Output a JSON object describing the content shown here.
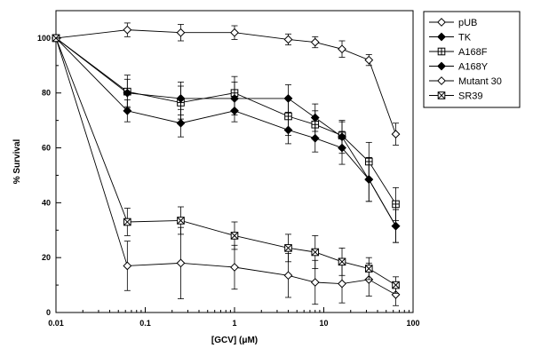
{
  "chart_data": {
    "type": "line",
    "xlabel": "[GCV]  (μM)",
    "ylabel": "% Survival",
    "x_scale": "log",
    "xlim": [
      0.01,
      100
    ],
    "ylim": [
      0,
      110
    ],
    "x_ticks": [
      0.01,
      0.1,
      1,
      10,
      100
    ],
    "x_tick_labels": [
      "0.01",
      "0.1",
      "1",
      "10",
      "100"
    ],
    "y_ticks": [
      0,
      20,
      40,
      60,
      80,
      100
    ],
    "y_tick_labels": [
      "0",
      "20",
      "40",
      "60",
      "80",
      "100"
    ],
    "grid": false,
    "legend_position": "top-right",
    "x": [
      0.01,
      0.063,
      0.25,
      1,
      4,
      8,
      16,
      32,
      64
    ],
    "series": [
      {
        "name": "pUB",
        "marker": "diamond-open",
        "values": [
          100,
          103,
          102,
          102,
          99.5,
          98.5,
          96,
          92,
          65
        ],
        "err": [
          0,
          2.5,
          3,
          2.5,
          2,
          2,
          3,
          2,
          4
        ]
      },
      {
        "name": "TK",
        "marker": "diamond-filled",
        "values": [
          100,
          73.5,
          69,
          73.5,
          66.5,
          63.5,
          60,
          48.5,
          31.5
        ],
        "err": [
          0,
          4,
          5,
          4,
          5,
          5,
          6,
          8,
          6
        ]
      },
      {
        "name": "A168F",
        "marker": "square-plus",
        "values": [
          100,
          80.5,
          76.5,
          80,
          71.5,
          68.5,
          64.5,
          55,
          39.5
        ],
        "err": [
          0,
          6,
          6,
          6,
          7,
          5,
          5,
          7,
          6
        ]
      },
      {
        "name": "A168Y",
        "marker": "diamond-filled",
        "values": [
          100,
          80,
          78,
          78,
          78,
          71,
          64,
          48.5,
          31.5
        ],
        "err": [
          0,
          5,
          6,
          6,
          5,
          5,
          6,
          8,
          6
        ]
      },
      {
        "name": "Mutant 30",
        "marker": "diamond-open",
        "values": [
          100,
          17,
          18,
          16.5,
          13.5,
          11,
          10.5,
          12,
          6.5
        ],
        "err": [
          0,
          9,
          13,
          8,
          8,
          8,
          7,
          6,
          4
        ]
      },
      {
        "name": "SR39",
        "marker": "square-cross",
        "values": [
          100,
          33,
          33.5,
          28,
          23.5,
          22,
          18.5,
          16,
          10
        ],
        "err": [
          0,
          5,
          5,
          5,
          5,
          6,
          5,
          4,
          3
        ]
      }
    ]
  }
}
